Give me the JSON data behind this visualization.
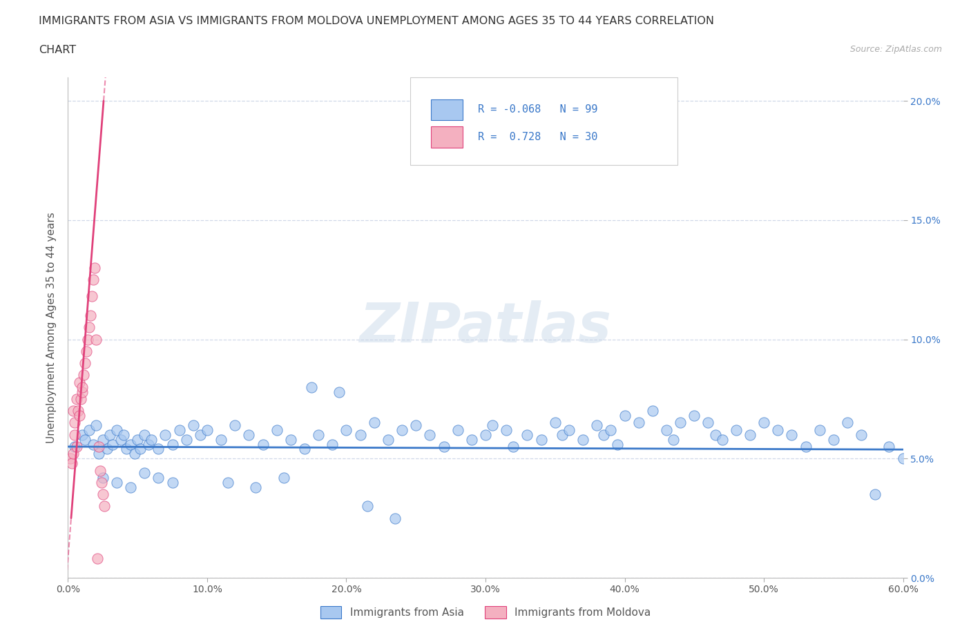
{
  "title_line1": "IMMIGRANTS FROM ASIA VS IMMIGRANTS FROM MOLDOVA UNEMPLOYMENT AMONG AGES 35 TO 44 YEARS CORRELATION",
  "title_line2": "CHART",
  "source": "Source: ZipAtlas.com",
  "ylabel": "Unemployment Among Ages 35 to 44 years",
  "xlim": [
    0.0,
    0.6
  ],
  "ylim": [
    0.0,
    0.21
  ],
  "xticks": [
    0.0,
    0.1,
    0.2,
    0.3,
    0.4,
    0.5,
    0.6
  ],
  "xticklabels": [
    "0.0%",
    "10.0%",
    "20.0%",
    "30.0%",
    "40.0%",
    "50.0%",
    "60.0%"
  ],
  "yticks": [
    0.0,
    0.05,
    0.1,
    0.15,
    0.2
  ],
  "yticklabels": [
    "0.0%",
    "5.0%",
    "10.0%",
    "15.0%",
    "20.0%"
  ],
  "R_asia": -0.068,
  "N_asia": 99,
  "R_moldova": 0.728,
  "N_moldova": 30,
  "color_asia": "#a8c8f0",
  "color_moldova": "#f4b0c0",
  "color_asia_line": "#3a78c9",
  "color_moldova_line": "#e0407a",
  "legend_label_asia": "Immigrants from Asia",
  "legend_label_moldova": "Immigrants from Moldova",
  "watermark": "ZIPatlas",
  "background_color": "#ffffff",
  "grid_color": "#d0d8e8",
  "asia_x": [
    0.005,
    0.01,
    0.012,
    0.015,
    0.018,
    0.02,
    0.022,
    0.025,
    0.028,
    0.03,
    0.032,
    0.035,
    0.038,
    0.04,
    0.042,
    0.045,
    0.048,
    0.05,
    0.052,
    0.055,
    0.058,
    0.06,
    0.065,
    0.07,
    0.075,
    0.08,
    0.085,
    0.09,
    0.095,
    0.1,
    0.11,
    0.12,
    0.13,
    0.14,
    0.15,
    0.16,
    0.17,
    0.18,
    0.19,
    0.2,
    0.21,
    0.22,
    0.23,
    0.24,
    0.25,
    0.26,
    0.27,
    0.28,
    0.29,
    0.3,
    0.305,
    0.315,
    0.32,
    0.33,
    0.34,
    0.35,
    0.355,
    0.36,
    0.37,
    0.38,
    0.385,
    0.39,
    0.395,
    0.4,
    0.41,
    0.42,
    0.43,
    0.435,
    0.44,
    0.45,
    0.46,
    0.465,
    0.47,
    0.48,
    0.49,
    0.5,
    0.51,
    0.52,
    0.53,
    0.54,
    0.55,
    0.56,
    0.57,
    0.58,
    0.59,
    0.6,
    0.025,
    0.035,
    0.045,
    0.055,
    0.065,
    0.075,
    0.115,
    0.135,
    0.155,
    0.175,
    0.195,
    0.215,
    0.235
  ],
  "asia_y": [
    0.055,
    0.06,
    0.058,
    0.062,
    0.056,
    0.064,
    0.052,
    0.058,
    0.054,
    0.06,
    0.056,
    0.062,
    0.058,
    0.06,
    0.054,
    0.056,
    0.052,
    0.058,
    0.054,
    0.06,
    0.056,
    0.058,
    0.054,
    0.06,
    0.056,
    0.062,
    0.058,
    0.064,
    0.06,
    0.062,
    0.058,
    0.064,
    0.06,
    0.056,
    0.062,
    0.058,
    0.054,
    0.06,
    0.056,
    0.062,
    0.06,
    0.065,
    0.058,
    0.062,
    0.064,
    0.06,
    0.055,
    0.062,
    0.058,
    0.06,
    0.064,
    0.062,
    0.055,
    0.06,
    0.058,
    0.065,
    0.06,
    0.062,
    0.058,
    0.064,
    0.06,
    0.062,
    0.056,
    0.068,
    0.065,
    0.07,
    0.062,
    0.058,
    0.065,
    0.068,
    0.065,
    0.06,
    0.058,
    0.062,
    0.06,
    0.065,
    0.062,
    0.06,
    0.055,
    0.062,
    0.058,
    0.065,
    0.06,
    0.035,
    0.055,
    0.05,
    0.042,
    0.04,
    0.038,
    0.044,
    0.042,
    0.04,
    0.04,
    0.038,
    0.042,
    0.08,
    0.078,
    0.03,
    0.025
  ],
  "moldova_x": [
    0.002,
    0.003,
    0.004,
    0.004,
    0.005,
    0.005,
    0.006,
    0.006,
    0.007,
    0.008,
    0.008,
    0.009,
    0.01,
    0.01,
    0.011,
    0.012,
    0.013,
    0.014,
    0.015,
    0.016,
    0.017,
    0.018,
    0.019,
    0.02,
    0.021,
    0.022,
    0.023,
    0.024,
    0.025,
    0.026
  ],
  "moldova_y": [
    0.05,
    0.048,
    0.052,
    0.07,
    0.065,
    0.06,
    0.055,
    0.075,
    0.07,
    0.068,
    0.082,
    0.075,
    0.078,
    0.08,
    0.085,
    0.09,
    0.095,
    0.1,
    0.105,
    0.11,
    0.118,
    0.125,
    0.13,
    0.1,
    0.008,
    0.055,
    0.045,
    0.04,
    0.035,
    0.03
  ],
  "title_fontsize": 11.5,
  "tick_fontsize": 10,
  "ylabel_fontsize": 11
}
